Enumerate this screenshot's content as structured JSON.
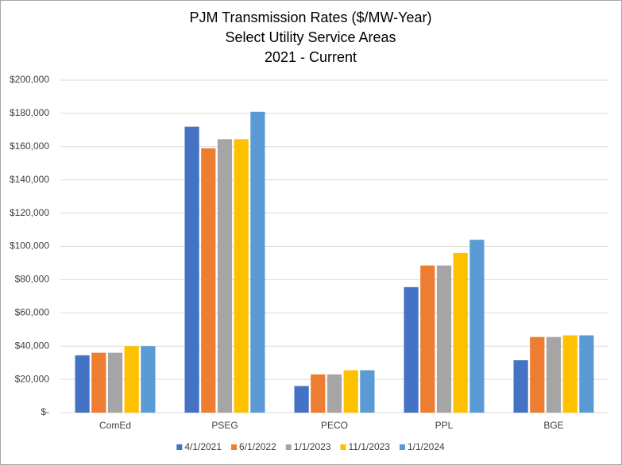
{
  "chart_data": {
    "type": "bar",
    "title_lines": [
      "PJM Transmission Rates ($/MW-Year)",
      "Select Utility Service Areas",
      "2021 - Current"
    ],
    "categories": [
      "ComEd",
      "PSEG",
      "PECO",
      "PPL",
      "BGE"
    ],
    "series": [
      {
        "name": "4/1/2021",
        "color": "#4472c4",
        "values": [
          34500,
          172000,
          16000,
          75500,
          31500
        ]
      },
      {
        "name": "6/1/2022",
        "color": "#ed7d31",
        "values": [
          36000,
          159000,
          23000,
          88500,
          45500
        ]
      },
      {
        "name": "1/1/2023",
        "color": "#a5a5a5",
        "values": [
          36000,
          164500,
          23000,
          88500,
          45500
        ]
      },
      {
        "name": "11/1/2023",
        "color": "#ffc000",
        "values": [
          40000,
          164500,
          25500,
          96000,
          46500
        ]
      },
      {
        "name": "1/1/2024",
        "color": "#5b9bd5",
        "values": [
          40000,
          181000,
          25500,
          104000,
          46500
        ]
      }
    ],
    "ylim": [
      0,
      200000
    ],
    "yticks": [
      {
        "value": 0,
        "label": "$-"
      },
      {
        "value": 20000,
        "label": "$20,000"
      },
      {
        "value": 40000,
        "label": "$40,000"
      },
      {
        "value": 60000,
        "label": "$60,000"
      },
      {
        "value": 80000,
        "label": "$80,000"
      },
      {
        "value": 100000,
        "label": "$100,000"
      },
      {
        "value": 120000,
        "label": "$120,000"
      },
      {
        "value": 140000,
        "label": "$140,000"
      },
      {
        "value": 160000,
        "label": "$160,000"
      },
      {
        "value": 180000,
        "label": "$180,000"
      },
      {
        "value": 200000,
        "label": "$200,000"
      }
    ],
    "grid": true,
    "legend": "bottom"
  }
}
